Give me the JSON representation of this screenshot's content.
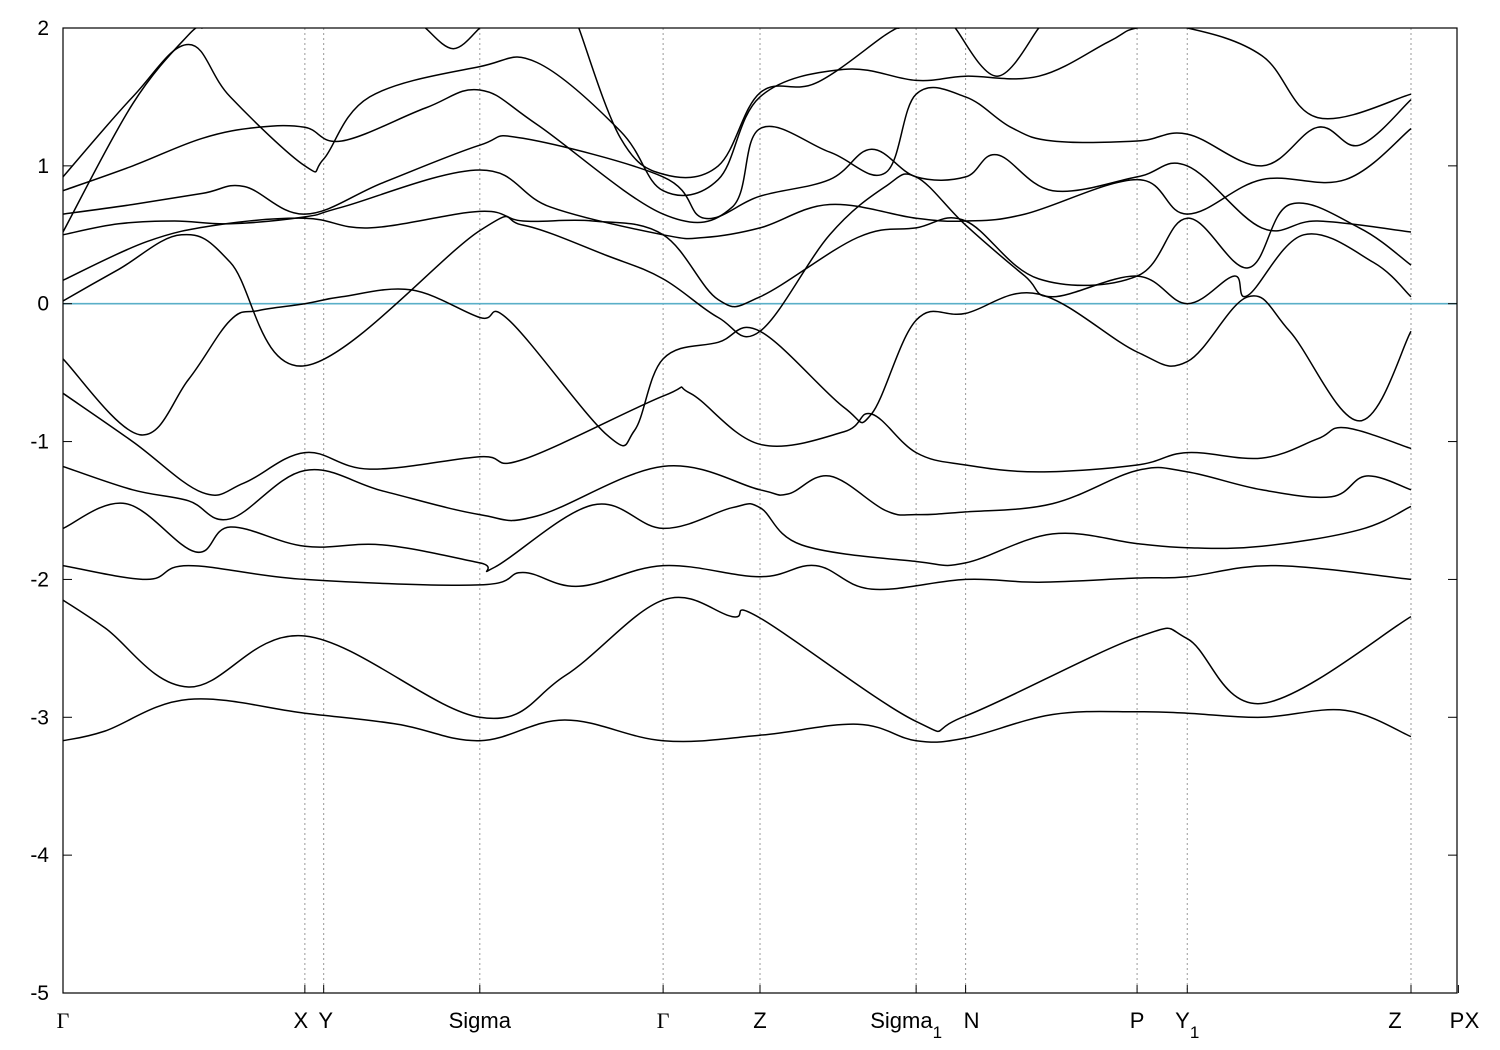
{
  "chart_data": {
    "type": "line",
    "title": "",
    "xlabel": "",
    "ylabel": "",
    "ylim": [
      -5,
      2
    ],
    "yticks": [
      -5,
      -4,
      -3,
      -2,
      -1,
      0,
      1,
      2
    ],
    "grid": "dotted vertical lines at high-symmetry points",
    "fermi_level": {
      "value": 0,
      "color": "#5aafc8"
    },
    "band_color": "#000000",
    "kpoints": [
      {
        "label": "Γ",
        "x": 0.0,
        "sub": ""
      },
      {
        "label": "X",
        "x": 1.735,
        "sub": ""
      },
      {
        "label": "Y",
        "x": 1.87,
        "sub": ""
      },
      {
        "label": "Sigma",
        "x": 2.99,
        "sub": ""
      },
      {
        "label": "Γ",
        "x": 4.305,
        "sub": ""
      },
      {
        "label": "Z",
        "x": 5.0,
        "sub": ""
      },
      {
        "label": "Sigma",
        "x": 6.12,
        "sub": "1"
      },
      {
        "label": "N",
        "x": 6.475,
        "sub": ""
      },
      {
        "label": "P",
        "x": 7.705,
        "sub": ""
      },
      {
        "label": "Y",
        "x": 8.065,
        "sub": "1"
      },
      {
        "label": "Z",
        "x": 9.67,
        "sub": ""
      },
      {
        "label": "X",
        "x": 10.0,
        "sub": ""
      },
      {
        "label": "P",
        "x": 10.01,
        "sub": ""
      }
    ],
    "x_axis": {
      "min": 0.0,
      "max": 10.0
    },
    "series": [
      {
        "values": [
          [
            0,
            -3.17
          ],
          [
            0.3,
            -3.1
          ],
          [
            0.9,
            -2.87
          ],
          [
            1.735,
            -2.97
          ],
          [
            2.4,
            -3.05
          ],
          [
            2.99,
            -3.17
          ],
          [
            3.6,
            -3.02
          ],
          [
            4.305,
            -3.17
          ],
          [
            5.0,
            -3.13
          ],
          [
            5.7,
            -3.05
          ],
          [
            6.12,
            -3.17
          ],
          [
            6.475,
            -3.15
          ],
          [
            7.1,
            -2.98
          ],
          [
            7.705,
            -2.96
          ],
          [
            8.065,
            -2.97
          ],
          [
            8.6,
            -3.0
          ],
          [
            9.2,
            -2.95
          ],
          [
            9.67,
            -3.14
          ]
        ]
      },
      {
        "values": [
          [
            0,
            -2.15
          ],
          [
            0.3,
            -2.35
          ],
          [
            0.9,
            -2.78
          ],
          [
            1.735,
            -2.41
          ],
          [
            2.99,
            -3.0
          ],
          [
            3.6,
            -2.7
          ],
          [
            4.305,
            -2.15
          ],
          [
            4.8,
            -2.27
          ],
          [
            5.0,
            -2.28
          ],
          [
            6.12,
            -3.03
          ],
          [
            6.475,
            -2.99
          ],
          [
            7.705,
            -2.42
          ],
          [
            8.065,
            -2.43
          ],
          [
            8.6,
            -2.9
          ],
          [
            9.67,
            -2.27
          ]
        ]
      },
      {
        "values": [
          [
            0,
            -1.9
          ],
          [
            0.6,
            -2.0
          ],
          [
            0.9,
            -1.9
          ],
          [
            1.735,
            -2.0
          ],
          [
            2.99,
            -2.04
          ],
          [
            3.3,
            -1.95
          ],
          [
            3.7,
            -2.05
          ],
          [
            4.305,
            -1.9
          ],
          [
            5.0,
            -1.98
          ],
          [
            5.4,
            -1.9
          ],
          [
            5.8,
            -2.07
          ],
          [
            6.475,
            -2.0
          ],
          [
            7.0,
            -2.02
          ],
          [
            7.705,
            -1.99
          ],
          [
            8.065,
            -1.98
          ],
          [
            8.7,
            -1.9
          ],
          [
            9.67,
            -2.0
          ]
        ]
      },
      {
        "values": [
          [
            0,
            -1.63
          ],
          [
            0.45,
            -1.45
          ],
          [
            0.95,
            -1.8
          ],
          [
            1.2,
            -1.62
          ],
          [
            1.735,
            -1.76
          ],
          [
            2.3,
            -1.75
          ],
          [
            2.99,
            -1.88
          ],
          [
            3.1,
            -1.91
          ],
          [
            3.8,
            -1.46
          ],
          [
            4.305,
            -1.63
          ],
          [
            4.8,
            -1.48
          ],
          [
            5.0,
            -1.48
          ],
          [
            5.3,
            -1.75
          ],
          [
            6.12,
            -1.87
          ],
          [
            6.475,
            -1.88
          ],
          [
            7.1,
            -1.67
          ],
          [
            7.705,
            -1.74
          ],
          [
            8.065,
            -1.77
          ],
          [
            8.6,
            -1.76
          ],
          [
            9.3,
            -1.64
          ],
          [
            9.67,
            -1.47
          ]
        ]
      },
      {
        "values": [
          [
            0,
            -1.18
          ],
          [
            0.5,
            -1.35
          ],
          [
            0.9,
            -1.43
          ],
          [
            1.2,
            -1.56
          ],
          [
            1.735,
            -1.21
          ],
          [
            2.3,
            -1.36
          ],
          [
            2.99,
            -1.53
          ],
          [
            3.4,
            -1.54
          ],
          [
            4.305,
            -1.18
          ],
          [
            5.0,
            -1.35
          ],
          [
            5.2,
            -1.38
          ],
          [
            5.5,
            -1.25
          ],
          [
            5.9,
            -1.5
          ],
          [
            6.12,
            -1.53
          ],
          [
            6.475,
            -1.51
          ],
          [
            7.1,
            -1.45
          ],
          [
            7.705,
            -1.21
          ],
          [
            8.065,
            -1.22
          ],
          [
            8.6,
            -1.35
          ],
          [
            9.1,
            -1.4
          ],
          [
            9.35,
            -1.25
          ],
          [
            9.67,
            -1.35
          ]
        ]
      },
      {
        "values": [
          [
            0,
            -0.65
          ],
          [
            0.5,
            -1.0
          ],
          [
            1.0,
            -1.37
          ],
          [
            1.3,
            -1.3
          ],
          [
            1.735,
            -1.08
          ],
          [
            2.2,
            -1.2
          ],
          [
            2.99,
            -1.11
          ],
          [
            3.3,
            -1.13
          ],
          [
            4.305,
            -0.67
          ],
          [
            4.5,
            -0.65
          ],
          [
            5.0,
            -1.02
          ],
          [
            5.6,
            -0.93
          ],
          [
            5.8,
            -0.8
          ],
          [
            6.12,
            -1.08
          ],
          [
            6.475,
            -1.17
          ],
          [
            7.0,
            -1.22
          ],
          [
            7.705,
            -1.17
          ],
          [
            8.065,
            -1.08
          ],
          [
            8.6,
            -1.12
          ],
          [
            9.0,
            -0.98
          ],
          [
            9.2,
            -0.9
          ],
          [
            9.67,
            -1.05
          ]
        ]
      },
      {
        "values": [
          [
            0,
            -0.4
          ],
          [
            0.55,
            -0.95
          ],
          [
            0.9,
            -0.55
          ],
          [
            1.2,
            -0.12
          ],
          [
            1.4,
            -0.05
          ],
          [
            1.735,
            0.0
          ],
          [
            2.0,
            0.05
          ],
          [
            2.5,
            0.1
          ],
          [
            2.99,
            -0.1
          ],
          [
            3.2,
            -0.12
          ],
          [
            3.9,
            -0.95
          ],
          [
            4.1,
            -0.92
          ],
          [
            4.305,
            -0.4
          ],
          [
            4.7,
            -0.28
          ],
          [
            5.0,
            -0.2
          ],
          [
            5.6,
            -0.75
          ],
          [
            5.8,
            -0.8
          ],
          [
            6.12,
            -0.12
          ],
          [
            6.475,
            -0.07
          ],
          [
            7.0,
            0.07
          ],
          [
            7.705,
            -0.35
          ],
          [
            8.065,
            -0.42
          ],
          [
            8.5,
            0.05
          ],
          [
            8.8,
            -0.2
          ],
          [
            9.3,
            -0.85
          ],
          [
            9.67,
            -0.2
          ]
        ]
      },
      {
        "values": [
          [
            0,
            0.02
          ],
          [
            0.4,
            0.25
          ],
          [
            0.85,
            0.5
          ],
          [
            1.2,
            0.3
          ],
          [
            1.735,
            -0.45
          ],
          [
            2.99,
            0.53
          ],
          [
            3.3,
            0.57
          ],
          [
            3.9,
            0.35
          ],
          [
            4.305,
            0.18
          ],
          [
            4.7,
            -0.1
          ],
          [
            5.0,
            -0.2
          ],
          [
            5.5,
            0.5
          ],
          [
            5.9,
            0.85
          ],
          [
            6.12,
            0.92
          ],
          [
            6.475,
            0.57
          ],
          [
            6.9,
            0.2
          ],
          [
            7.1,
            0.05
          ],
          [
            7.705,
            0.2
          ],
          [
            8.065,
            0.0
          ],
          [
            8.4,
            0.2
          ],
          [
            8.5,
            0.06
          ],
          [
            8.9,
            0.5
          ],
          [
            9.4,
            0.3
          ],
          [
            9.67,
            0.05
          ]
        ]
      },
      {
        "values": [
          [
            0,
            0.17
          ],
          [
            0.6,
            0.45
          ],
          [
            1.1,
            0.57
          ],
          [
            1.735,
            0.62
          ],
          [
            2.2,
            0.55
          ],
          [
            2.99,
            0.67
          ],
          [
            3.3,
            0.6
          ],
          [
            3.8,
            0.6
          ],
          [
            4.305,
            0.5
          ],
          [
            4.7,
            0.03
          ],
          [
            5.0,
            0.05
          ],
          [
            5.7,
            0.48
          ],
          [
            6.12,
            0.55
          ],
          [
            6.475,
            0.6
          ],
          [
            7.0,
            0.18
          ],
          [
            7.705,
            0.2
          ],
          [
            8.065,
            0.62
          ],
          [
            8.5,
            0.26
          ],
          [
            8.8,
            0.72
          ],
          [
            9.3,
            0.55
          ],
          [
            9.67,
            0.28
          ]
        ]
      },
      {
        "values": [
          [
            0,
            0.5
          ],
          [
            0.4,
            0.58
          ],
          [
            0.8,
            0.6
          ],
          [
            1.2,
            0.58
          ],
          [
            1.735,
            0.63
          ],
          [
            2.0,
            0.7
          ],
          [
            2.99,
            0.97
          ],
          [
            3.5,
            0.7
          ],
          [
            4.305,
            0.5
          ],
          [
            4.6,
            0.48
          ],
          [
            5.0,
            0.55
          ],
          [
            5.5,
            0.72
          ],
          [
            6.12,
            0.62
          ],
          [
            6.475,
            0.6
          ],
          [
            6.9,
            0.65
          ],
          [
            7.705,
            0.9
          ],
          [
            8.065,
            0.65
          ],
          [
            8.6,
            0.9
          ],
          [
            9.2,
            0.9
          ],
          [
            9.67,
            1.27
          ]
        ]
      },
      {
        "values": [
          [
            0,
            0.65
          ],
          [
            0.5,
            0.72
          ],
          [
            1.0,
            0.8
          ],
          [
            1.3,
            0.85
          ],
          [
            1.735,
            0.65
          ],
          [
            2.3,
            0.88
          ],
          [
            2.99,
            1.15
          ],
          [
            3.3,
            1.2
          ],
          [
            4.305,
            0.92
          ],
          [
            4.6,
            0.62
          ],
          [
            5.0,
            0.78
          ],
          [
            5.5,
            0.9
          ],
          [
            5.8,
            1.12
          ],
          [
            6.12,
            0.92
          ],
          [
            6.475,
            0.92
          ],
          [
            6.7,
            1.08
          ],
          [
            7.1,
            0.82
          ],
          [
            7.705,
            0.92
          ],
          [
            8.065,
            1.0
          ],
          [
            8.6,
            0.55
          ],
          [
            9.0,
            0.6
          ],
          [
            9.67,
            0.52
          ]
        ]
      },
      {
        "values": [
          [
            0,
            0.82
          ],
          [
            0.5,
            1.0
          ],
          [
            1.0,
            1.2
          ],
          [
            1.4,
            1.28
          ],
          [
            1.735,
            1.28
          ],
          [
            2.0,
            1.18
          ],
          [
            2.6,
            1.42
          ],
          [
            2.99,
            1.55
          ],
          [
            3.4,
            1.3
          ],
          [
            4.305,
            0.65
          ],
          [
            4.8,
            0.7
          ],
          [
            5.0,
            1.27
          ],
          [
            5.5,
            1.1
          ],
          [
            5.9,
            0.95
          ],
          [
            6.12,
            1.52
          ],
          [
            6.475,
            1.5
          ],
          [
            6.8,
            1.28
          ],
          [
            7.1,
            1.18
          ],
          [
            7.705,
            1.18
          ],
          [
            8.065,
            1.23
          ],
          [
            8.6,
            1.0
          ],
          [
            9.0,
            1.28
          ],
          [
            9.3,
            1.15
          ],
          [
            9.67,
            1.48
          ]
        ]
      },
      {
        "values": [
          [
            0,
            0.92
          ],
          [
            0.5,
            1.5
          ],
          [
            0.9,
            1.88
          ],
          [
            1.2,
            1.5
          ],
          [
            1.735,
            1.0
          ],
          [
            1.87,
            1.05
          ],
          [
            2.2,
            1.5
          ],
          [
            2.99,
            1.72
          ],
          [
            3.4,
            1.75
          ],
          [
            4.0,
            1.25
          ],
          [
            4.305,
            0.82
          ],
          [
            4.7,
            0.9
          ],
          [
            5.0,
            1.5
          ],
          [
            5.6,
            1.7
          ],
          [
            6.12,
            1.62
          ],
          [
            6.475,
            1.65
          ],
          [
            7.0,
            1.65
          ],
          [
            7.5,
            1.9
          ],
          [
            7.705,
            2.0
          ],
          [
            8.065,
            2.0
          ],
          [
            8.6,
            1.8
          ],
          [
            9.0,
            1.35
          ],
          [
            9.67,
            1.52
          ]
        ]
      },
      {
        "values": [
          [
            0,
            0.52
          ],
          [
            0.5,
            1.45
          ],
          [
            0.9,
            1.95
          ],
          [
            1.0,
            2.0
          ]
        ]
      },
      {
        "values": [
          [
            2.6,
            2.0
          ],
          [
            2.8,
            1.85
          ],
          [
            2.99,
            2.0
          ]
        ]
      },
      {
        "values": [
          [
            3.7,
            2.0
          ],
          [
            4.0,
            1.2
          ],
          [
            4.305,
            0.94
          ],
          [
            4.7,
            1.0
          ],
          [
            5.0,
            1.53
          ],
          [
            5.4,
            1.6
          ],
          [
            5.9,
            1.95
          ],
          [
            6.0,
            2.0
          ]
        ]
      },
      {
        "values": [
          [
            6.4,
            2.0
          ],
          [
            6.7,
            1.65
          ],
          [
            7.0,
            2.0
          ]
        ]
      }
    ]
  }
}
